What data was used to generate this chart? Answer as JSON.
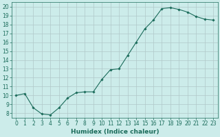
{
  "x": [
    0,
    1,
    2,
    3,
    4,
    5,
    6,
    7,
    8,
    9,
    10,
    11,
    12,
    13,
    14,
    15,
    16,
    17,
    18,
    19,
    20,
    21,
    22,
    23
  ],
  "y": [
    10.0,
    10.2,
    8.6,
    7.9,
    7.8,
    8.6,
    9.7,
    10.3,
    10.4,
    10.4,
    11.8,
    12.9,
    13.0,
    14.5,
    16.0,
    17.5,
    18.5,
    19.8,
    19.9,
    19.7,
    19.4,
    18.9,
    18.6,
    18.5
  ],
  "xlabel": "Humidex (Indice chaleur)",
  "ylabel": "",
  "xlim": [
    -0.5,
    23.5
  ],
  "ylim": [
    7.5,
    20.5
  ],
  "yticks": [
    8,
    9,
    10,
    11,
    12,
    13,
    14,
    15,
    16,
    17,
    18,
    19,
    20
  ],
  "xticks": [
    0,
    1,
    2,
    3,
    4,
    5,
    6,
    7,
    8,
    9,
    10,
    11,
    12,
    13,
    14,
    15,
    16,
    17,
    18,
    19,
    20,
    21,
    22,
    23
  ],
  "line_color": "#1a6b5a",
  "marker": "D",
  "marker_size": 1.8,
  "line_width": 0.8,
  "bg_color": "#ccecea",
  "grid_color": "#b0c8c8",
  "tick_fontsize": 5.5,
  "xlabel_fontsize": 6.5
}
